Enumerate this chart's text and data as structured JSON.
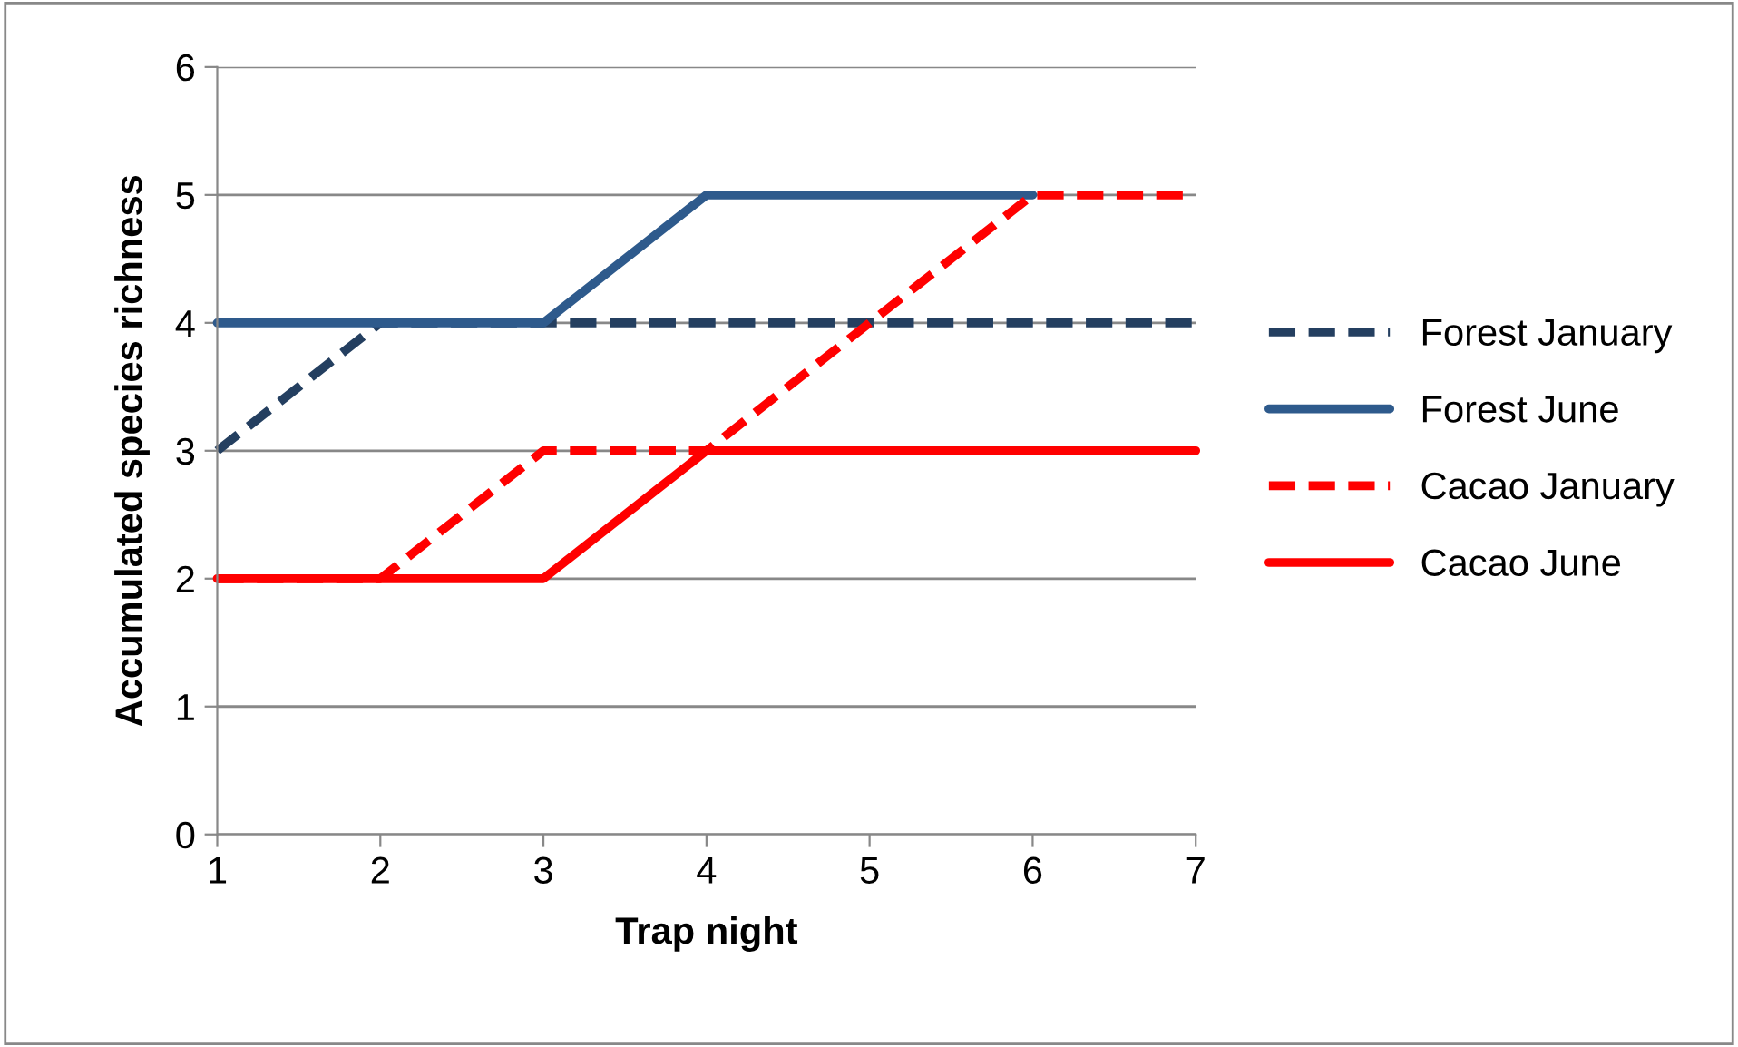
{
  "chart_data": {
    "type": "line",
    "xlabel": "Trap night",
    "ylabel": "Accumulated species richness",
    "x": [
      1,
      2,
      3,
      4,
      5,
      6,
      7
    ],
    "xlim": [
      1,
      7
    ],
    "xticks": [
      1,
      2,
      3,
      4,
      5,
      6,
      7
    ],
    "ylim": [
      0,
      6
    ],
    "yticks": [
      0,
      1,
      2,
      3,
      4,
      5,
      6
    ],
    "grid": "y",
    "legend": "right",
    "marker": "none",
    "series": [
      {
        "name": "Forest January",
        "color": "#243f60",
        "line_style": "dashed",
        "values": [
          3,
          4,
          4,
          4,
          4,
          4,
          4
        ]
      },
      {
        "name": "Forest June",
        "color": "#2e5a8c",
        "line_style": "solid",
        "values": [
          4,
          4,
          4,
          5,
          5,
          5,
          null
        ]
      },
      {
        "name": "Cacao January",
        "color": "#ff0000",
        "line_style": "dashed",
        "values": [
          2,
          2,
          3,
          3,
          4,
          5,
          5
        ]
      },
      {
        "name": "Cacao June",
        "color": "#ff0000",
        "line_style": "solid",
        "values": [
          2,
          2,
          2,
          3,
          3,
          3,
          3
        ]
      }
    ]
  }
}
